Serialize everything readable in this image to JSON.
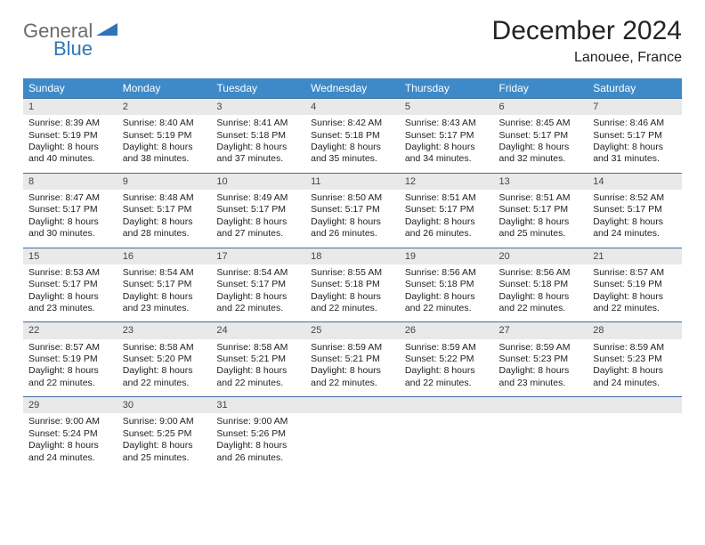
{
  "logo": {
    "word1": "General",
    "word2": "Blue",
    "tri_color": "#2f76b8"
  },
  "title": "December 2024",
  "location": "Lanouee, France",
  "header_bg": "#3e8ac9",
  "row_border": "#3e6ea0",
  "daynum_bg": "#e9e9e9",
  "weekdays": [
    "Sunday",
    "Monday",
    "Tuesday",
    "Wednesday",
    "Thursday",
    "Friday",
    "Saturday"
  ],
  "weeks": [
    [
      {
        "n": "1",
        "sr": "8:39 AM",
        "ss": "5:19 PM",
        "dl": "8 hours and 40 minutes."
      },
      {
        "n": "2",
        "sr": "8:40 AM",
        "ss": "5:19 PM",
        "dl": "8 hours and 38 minutes."
      },
      {
        "n": "3",
        "sr": "8:41 AM",
        "ss": "5:18 PM",
        "dl": "8 hours and 37 minutes."
      },
      {
        "n": "4",
        "sr": "8:42 AM",
        "ss": "5:18 PM",
        "dl": "8 hours and 35 minutes."
      },
      {
        "n": "5",
        "sr": "8:43 AM",
        "ss": "5:17 PM",
        "dl": "8 hours and 34 minutes."
      },
      {
        "n": "6",
        "sr": "8:45 AM",
        "ss": "5:17 PM",
        "dl": "8 hours and 32 minutes."
      },
      {
        "n": "7",
        "sr": "8:46 AM",
        "ss": "5:17 PM",
        "dl": "8 hours and 31 minutes."
      }
    ],
    [
      {
        "n": "8",
        "sr": "8:47 AM",
        "ss": "5:17 PM",
        "dl": "8 hours and 30 minutes."
      },
      {
        "n": "9",
        "sr": "8:48 AM",
        "ss": "5:17 PM",
        "dl": "8 hours and 28 minutes."
      },
      {
        "n": "10",
        "sr": "8:49 AM",
        "ss": "5:17 PM",
        "dl": "8 hours and 27 minutes."
      },
      {
        "n": "11",
        "sr": "8:50 AM",
        "ss": "5:17 PM",
        "dl": "8 hours and 26 minutes."
      },
      {
        "n": "12",
        "sr": "8:51 AM",
        "ss": "5:17 PM",
        "dl": "8 hours and 26 minutes."
      },
      {
        "n": "13",
        "sr": "8:51 AM",
        "ss": "5:17 PM",
        "dl": "8 hours and 25 minutes."
      },
      {
        "n": "14",
        "sr": "8:52 AM",
        "ss": "5:17 PM",
        "dl": "8 hours and 24 minutes."
      }
    ],
    [
      {
        "n": "15",
        "sr": "8:53 AM",
        "ss": "5:17 PM",
        "dl": "8 hours and 23 minutes."
      },
      {
        "n": "16",
        "sr": "8:54 AM",
        "ss": "5:17 PM",
        "dl": "8 hours and 23 minutes."
      },
      {
        "n": "17",
        "sr": "8:54 AM",
        "ss": "5:17 PM",
        "dl": "8 hours and 22 minutes."
      },
      {
        "n": "18",
        "sr": "8:55 AM",
        "ss": "5:18 PM",
        "dl": "8 hours and 22 minutes."
      },
      {
        "n": "19",
        "sr": "8:56 AM",
        "ss": "5:18 PM",
        "dl": "8 hours and 22 minutes."
      },
      {
        "n": "20",
        "sr": "8:56 AM",
        "ss": "5:18 PM",
        "dl": "8 hours and 22 minutes."
      },
      {
        "n": "21",
        "sr": "8:57 AM",
        "ss": "5:19 PM",
        "dl": "8 hours and 22 minutes."
      }
    ],
    [
      {
        "n": "22",
        "sr": "8:57 AM",
        "ss": "5:19 PM",
        "dl": "8 hours and 22 minutes."
      },
      {
        "n": "23",
        "sr": "8:58 AM",
        "ss": "5:20 PM",
        "dl": "8 hours and 22 minutes."
      },
      {
        "n": "24",
        "sr": "8:58 AM",
        "ss": "5:21 PM",
        "dl": "8 hours and 22 minutes."
      },
      {
        "n": "25",
        "sr": "8:59 AM",
        "ss": "5:21 PM",
        "dl": "8 hours and 22 minutes."
      },
      {
        "n": "26",
        "sr": "8:59 AM",
        "ss": "5:22 PM",
        "dl": "8 hours and 22 minutes."
      },
      {
        "n": "27",
        "sr": "8:59 AM",
        "ss": "5:23 PM",
        "dl": "8 hours and 23 minutes."
      },
      {
        "n": "28",
        "sr": "8:59 AM",
        "ss": "5:23 PM",
        "dl": "8 hours and 24 minutes."
      }
    ],
    [
      {
        "n": "29",
        "sr": "9:00 AM",
        "ss": "5:24 PM",
        "dl": "8 hours and 24 minutes."
      },
      {
        "n": "30",
        "sr": "9:00 AM",
        "ss": "5:25 PM",
        "dl": "8 hours and 25 minutes."
      },
      {
        "n": "31",
        "sr": "9:00 AM",
        "ss": "5:26 PM",
        "dl": "8 hours and 26 minutes."
      },
      null,
      null,
      null,
      null
    ]
  ],
  "labels": {
    "sunrise": "Sunrise:",
    "sunset": "Sunset:",
    "daylight": "Daylight:"
  }
}
